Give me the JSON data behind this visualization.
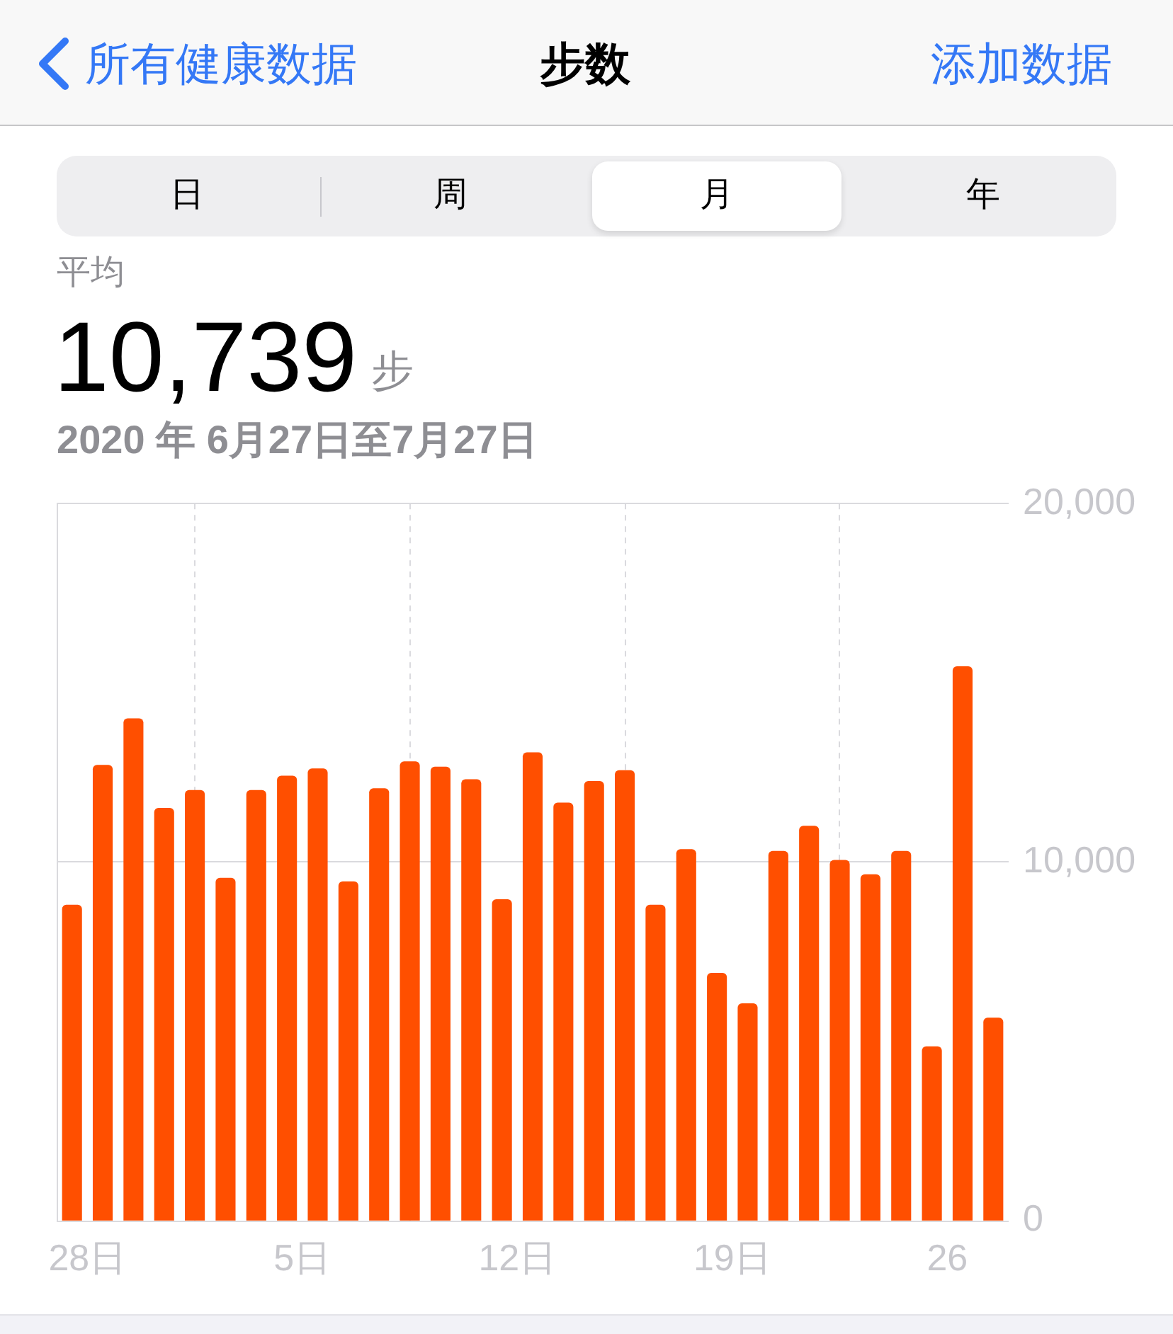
{
  "chart_data": {
    "type": "bar",
    "title": "步数",
    "subtitle": "2020 年 6月27日至7月27日",
    "annotations": [
      "所有健康数据",
      "添加数据",
      "日",
      "周",
      "月",
      "年",
      "平均",
      "10,739",
      "步"
    ],
    "x": [
      "2020-06-27T12:00",
      "2020-06-28T12:00",
      "2020-06-29T12:00",
      "2020-06-30T12:00",
      "2020-07-01T12:00",
      "2020-07-02T12:00",
      "2020-07-03T12:00",
      "2020-07-04T12:00",
      "2020-07-05T12:00",
      "2020-07-06T12:00",
      "2020-07-07T12:00",
      "2020-07-08T12:00",
      "2020-07-09T12:00",
      "2020-07-10T12:00",
      "2020-07-11T12:00",
      "2020-07-12T12:00",
      "2020-07-13T12:00",
      "2020-07-14T12:00",
      "2020-07-15T12:00",
      "2020-07-16T12:00",
      "2020-07-17T12:00",
      "2020-07-18T12:00",
      "2020-07-19T12:00",
      "2020-07-20T12:00",
      "2020-07-21T12:00",
      "2020-07-22T12:00",
      "2020-07-23T12:00",
      "2020-07-24T12:00",
      "2020-07-25T12:00",
      "2020-07-26T12:00",
      "2020-07-27T12:00"
    ],
    "values": [
      8800,
      12700,
      14000,
      11500,
      12000,
      9550,
      12000,
      12400,
      12600,
      9450,
      12050,
      12800,
      12650,
      12300,
      8950,
      13050,
      11650,
      12250,
      12550,
      8800,
      10350,
      6900,
      6050,
      10300,
      11000,
      10050,
      9650,
      10300,
      4850,
      15450,
      5650
    ],
    "color": "#ff4f00",
    "xlim": [
      "2020-06-27",
      "2020-07-28"
    ],
    "xticks": [
      {
        "value": "2020-06-28",
        "label": "28日"
      },
      {
        "value": "2020-07-05",
        "label": "5日"
      },
      {
        "value": "2020-07-12",
        "label": "12日"
      },
      {
        "value": "2020-07-19",
        "label": "19日"
      },
      {
        "value": "2020-07-26",
        "label": "26"
      }
    ],
    "ylim": [
      0,
      20000
    ],
    "yticks": [
      0,
      {
        "value": 10000,
        "label": "10,000"
      },
      {
        "value": 20000,
        "label": "20,000"
      }
    ],
    "grid": true
  }
}
